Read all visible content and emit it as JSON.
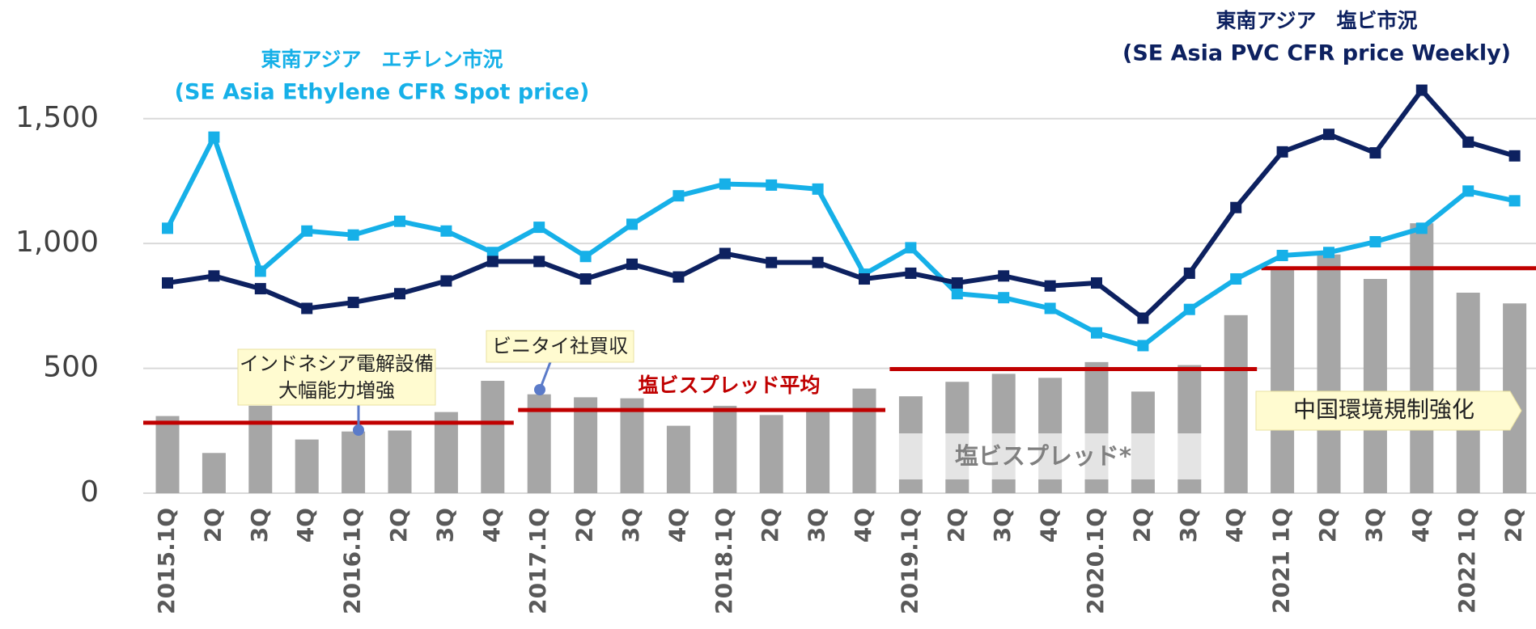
{
  "chart_data": {
    "type": "bar_line",
    "categories": [
      "2015.1Q",
      "2Q",
      "3Q",
      "4Q",
      "2016.1Q",
      "2Q",
      "3Q",
      "4Q",
      "2017.1Q",
      "2Q",
      "3Q",
      "4Q",
      "2018.1Q",
      "2Q",
      "3Q",
      "4Q",
      "2019.1Q",
      "2Q",
      "3Q",
      "4Q",
      "2020.1Q",
      "2Q",
      "3Q",
      "4Q",
      "2021 1Q",
      "2Q",
      "3Q",
      "4Q",
      "2022 1Q",
      "2Q"
    ],
    "bars": {
      "name": "塩ビスプレッド*",
      "color": "#a6a6a6",
      "values": [
        309,
        161,
        350,
        215,
        247,
        251,
        325,
        450,
        396,
        384,
        380,
        270,
        350,
        313,
        329,
        419,
        388,
        446,
        478,
        462,
        525,
        407,
        513,
        713,
        897,
        956,
        858,
        1081,
        803,
        760
      ]
    },
    "series": [
      {
        "name": "東南アジア　エチレン市況",
        "name_en": "(SE Asia Ethylene CFR Spot price)",
        "color": "#16b0e8",
        "values": [
          1061,
          1426,
          889,
          1050,
          1034,
          1089,
          1050,
          964,
          1065,
          948,
          1077,
          1191,
          1238,
          1234,
          1218,
          877,
          983,
          799,
          783,
          740,
          642,
          591,
          736,
          858,
          952,
          964,
          1007,
          1061,
          1210,
          1171
        ]
      },
      {
        "name": "東南アジア　塩ビ市況",
        "name_en": "(SE Asia PVC CFR price Weekly)",
        "color": "#0d2160",
        "values": [
          842,
          870,
          819,
          740,
          764,
          799,
          850,
          928,
          928,
          858,
          917,
          866,
          960,
          924,
          924,
          858,
          881,
          842,
          870,
          830,
          842,
          701,
          881,
          1144,
          1367,
          1437,
          1363,
          1614,
          1406,
          1351
        ]
      }
    ],
    "spread_average": {
      "name": "塩ビスプレッド平均",
      "color": "#c00000",
      "values": [
        282,
        333,
        497,
        901
      ]
    },
    "annotations": {
      "indonesia": [
        "インドネシア電解設備",
        "大幅能力増強"
      ],
      "vinythai": "ビニタイ社買収",
      "china": "中国環境規制強化"
    },
    "ylim": [
      0,
      1700
    ],
    "yticks": [
      0,
      {
        "value": 500,
        "label": "500"
      },
      {
        "value": 1000,
        "label": "1,000"
      },
      {
        "value": 1500,
        "label": "1,500"
      }
    ],
    "grid": true
  }
}
